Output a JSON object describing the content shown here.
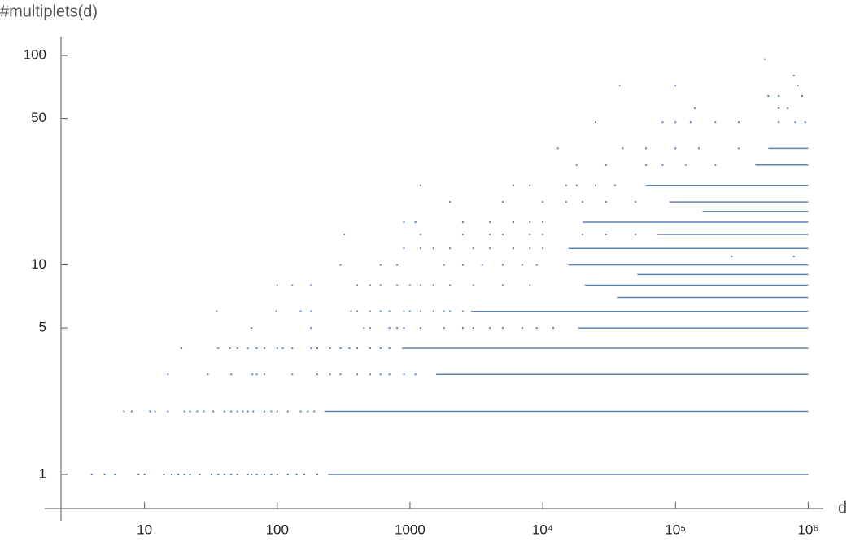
{
  "chart_data": {
    "type": "scatter",
    "log_x": true,
    "log_y": true,
    "color": "#5e81b5",
    "xlabel": "d",
    "ylabel": "#multiplets(d)",
    "xlim": [
      2.35,
      1300000
    ],
    "ylim": [
      0.687,
      123
    ],
    "xticks": [
      10,
      100,
      {
        "value": 1000,
        "label": "1000"
      },
      {
        "value": 10000,
        "label": "10⁴"
      },
      {
        "value": 100000,
        "label": "10⁵"
      },
      {
        "value": 1000000,
        "label": "10⁶"
      }
    ],
    "yticks": [
      1,
      5,
      10,
      50,
      100
    ],
    "lines": [
      {
        "x": [
          241,
          1000000
        ],
        "values": [
          1,
          1
        ]
      },
      {
        "x": [
          228,
          1000000
        ],
        "values": [
          2,
          2
        ]
      },
      {
        "x": [
          1570,
          1000000
        ],
        "values": [
          3,
          3
        ]
      },
      {
        "x": [
          869,
          1000000
        ],
        "values": [
          4,
          4
        ]
      },
      {
        "x": [
          18450,
          1000000
        ],
        "values": [
          5,
          5
        ]
      },
      {
        "x": [
          2880,
          1000000
        ],
        "values": [
          6,
          6
        ]
      },
      {
        "x": [
          36300,
          1000000
        ],
        "values": [
          7,
          7
        ]
      },
      {
        "x": [
          20700,
          1000000
        ],
        "values": [
          8,
          8
        ]
      },
      {
        "x": [
          51600,
          1000000
        ],
        "values": [
          9,
          9
        ]
      },
      {
        "x": [
          15600,
          1000000
        ],
        "values": [
          10,
          10
        ]
      },
      {
        "x": [
          15600,
          1000000
        ],
        "values": [
          12,
          12
        ]
      },
      {
        "x": [
          73300,
          1000000
        ],
        "values": [
          14,
          14
        ]
      },
      {
        "x": [
          20000,
          1000000
        ],
        "values": [
          16,
          16
        ]
      },
      {
        "x": [
          160000,
          1000000
        ],
        "values": [
          18,
          18
        ]
      },
      {
        "x": [
          90000,
          1000000
        ],
        "values": [
          20,
          20
        ]
      },
      {
        "x": [
          60000,
          1000000
        ],
        "values": [
          24,
          24
        ]
      },
      {
        "x": [
          400000,
          1000000
        ],
        "values": [
          30,
          30
        ]
      },
      {
        "x": [
          500000,
          1000000
        ],
        "values": [
          36,
          36
        ]
      }
    ],
    "series": [
      {
        "x": [
          4,
          5,
          6,
          9,
          10,
          14,
          16,
          18,
          20,
          22,
          26,
          32,
          36,
          40,
          45,
          50,
          60,
          64,
          70,
          80,
          90,
          100,
          120,
          140,
          160,
          200
        ],
        "values": [
          1,
          1,
          1,
          1,
          1,
          1,
          1,
          1,
          1,
          1,
          1,
          1,
          1,
          1,
          1,
          1,
          1,
          1,
          1,
          1,
          1,
          1,
          1,
          1,
          1,
          1
        ]
      },
      {
        "x": [
          7,
          8,
          11,
          12,
          15,
          20,
          22,
          25,
          28,
          33,
          40,
          45,
          50,
          55,
          60,
          66,
          80,
          90,
          100,
          120,
          150,
          170,
          190
        ],
        "values": [
          2,
          2,
          2,
          2,
          2,
          2,
          2,
          2,
          2,
          2,
          2,
          2,
          2,
          2,
          2,
          2,
          2,
          2,
          2,
          2,
          2,
          2,
          2
        ]
      },
      {
        "x": [
          15,
          30,
          45,
          65,
          70,
          80,
          130,
          200,
          250,
          300,
          400,
          500,
          600,
          700,
          900,
          1100
        ],
        "values": [
          3,
          3,
          3,
          3,
          3,
          3,
          3,
          3,
          3,
          3,
          3,
          3,
          3,
          3,
          3,
          3
        ]
      },
      {
        "x": [
          19,
          36,
          44,
          50,
          60,
          70,
          80,
          100,
          110,
          130,
          180,
          200,
          250,
          300,
          350,
          400,
          500,
          600,
          700
        ],
        "values": [
          4,
          4,
          4,
          4,
          4,
          4,
          4,
          4,
          4,
          4,
          4,
          4,
          4,
          4,
          4,
          4,
          4,
          4,
          4
        ]
      },
      {
        "x": [
          64,
          180,
          450,
          500,
          700,
          800,
          900,
          1200,
          1800,
          2500,
          3000,
          4000,
          5000,
          7000,
          9000,
          12000
        ],
        "values": [
          5,
          5,
          5,
          5,
          5,
          5,
          5,
          5,
          5,
          5,
          5,
          5,
          5,
          5,
          5,
          5
        ]
      },
      {
        "x": [
          35,
          98,
          150,
          180,
          360,
          400,
          500,
          600,
          700,
          900,
          1000,
          1200,
          1500,
          1800,
          2000,
          2500
        ],
        "values": [
          6,
          6,
          6,
          6,
          6,
          6,
          6,
          6,
          6,
          6,
          6,
          6,
          6,
          6,
          6,
          6
        ]
      },
      {
        "x": [
          100,
          130,
          180,
          400,
          500,
          600,
          800,
          1000,
          1200,
          1500,
          2000,
          3000,
          5000,
          8000
        ],
        "values": [
          8,
          8,
          8,
          8,
          8,
          8,
          8,
          8,
          8,
          8,
          8,
          8,
          8,
          8
        ]
      },
      {
        "x": [
          300,
          600,
          800,
          1800,
          2500,
          3500,
          5000,
          7000,
          9000
        ],
        "values": [
          10,
          10,
          10,
          10,
          10,
          10,
          10,
          10,
          10
        ]
      },
      {
        "x": [
          900,
          1200,
          1500,
          2000,
          3000,
          4000,
          6000,
          8000,
          10000
        ],
        "values": [
          12,
          12,
          12,
          12,
          12,
          12,
          12,
          12,
          12
        ]
      },
      {
        "x": [
          320,
          1200,
          2500,
          4000,
          5000,
          8000,
          10000,
          20000,
          30000,
          50000
        ],
        "values": [
          14,
          14,
          14,
          14,
          14,
          14,
          14,
          14,
          14,
          14
        ]
      },
      {
        "x": [
          900,
          1100,
          2500,
          4000,
          6000,
          8000,
          10000
        ],
        "values": [
          16,
          16,
          16,
          16,
          16,
          16,
          16
        ]
      },
      {
        "x": [
          2000,
          5000,
          10000,
          15000,
          20000,
          30000,
          50000
        ],
        "values": [
          20,
          20,
          20,
          20,
          20,
          20,
          20
        ]
      },
      {
        "x": [
          1200,
          6000,
          8000,
          15000,
          18000,
          25000,
          35000
        ],
        "values": [
          24,
          24,
          24,
          24,
          24,
          24,
          24
        ]
      },
      {
        "x": [
          18000,
          30000,
          60000,
          80000,
          120000,
          200000
        ],
        "values": [
          30,
          30,
          30,
          30,
          30,
          30
        ]
      },
      {
        "x": [
          13000,
          40000,
          60000,
          100000,
          150000,
          300000
        ],
        "values": [
          36,
          36,
          36,
          36,
          36,
          36
        ]
      },
      {
        "x": [
          25000,
          80000,
          100000,
          130000,
          200000,
          300000,
          600000,
          800000,
          950000
        ],
        "values": [
          48,
          48,
          48,
          48,
          48,
          48,
          48,
          48,
          48
        ]
      },
      {
        "x": [
          140000,
          600000,
          700000
        ],
        "values": [
          56,
          56,
          56
        ]
      },
      {
        "x": [
          500000,
          600000,
          900000
        ],
        "values": [
          64,
          64,
          64
        ]
      },
      {
        "x": [
          38000,
          100000,
          840000
        ],
        "values": [
          72,
          72,
          72
        ]
      },
      {
        "x": [
          780000,
          470000
        ],
        "values": [
          80,
          96
        ]
      },
      {
        "x": [
          265000,
          780000
        ],
        "values": [
          11,
          11
        ]
      }
    ]
  }
}
